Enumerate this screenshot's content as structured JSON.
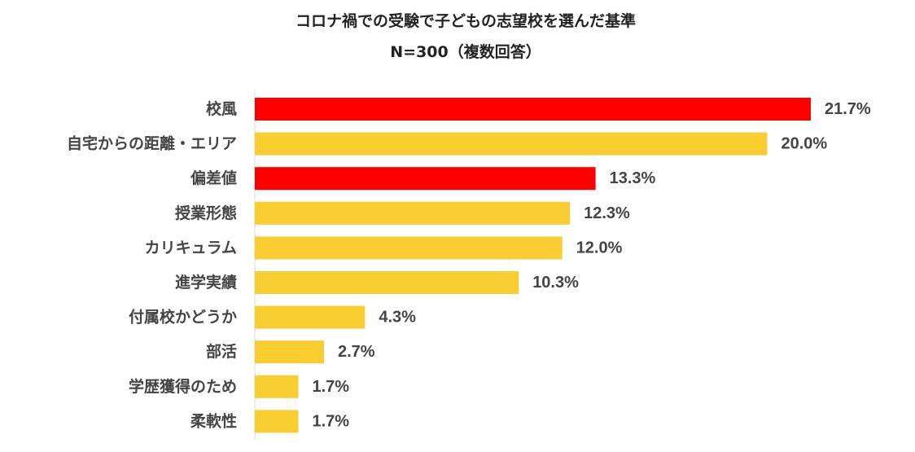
{
  "chart_data": {
    "type": "bar",
    "orientation": "horizontal",
    "title": "コロナ禍での受験で子どもの志望校を選んだ基準",
    "subtitle": "N=300（複数回答）",
    "categories": [
      "校風",
      "自宅からの距離・エリア",
      "偏差値",
      "授業形態",
      "カリキュラム",
      "進学実績",
      "付属校かどうか",
      "部活",
      "学歴獲得のため",
      "柔軟性"
    ],
    "values": [
      21.7,
      20.0,
      13.3,
      12.3,
      12.0,
      10.3,
      4.3,
      2.7,
      1.7,
      1.7
    ],
    "value_labels": [
      "21.7%",
      "20.0%",
      "13.3%",
      "12.3%",
      "12.0%",
      "10.3%",
      "4.3%",
      "2.7%",
      "1.7%",
      "1.7%"
    ],
    "highlighted": [
      true,
      false,
      true,
      false,
      false,
      false,
      false,
      false,
      false,
      false
    ],
    "xlim": [
      0,
      21.7
    ],
    "grid": false,
    "legend": "none"
  },
  "colors": {
    "highlight": "#ff0000",
    "default": "#f9cd2f",
    "text": "#444444",
    "title": "#222222",
    "axis": "#d9d9d9"
  }
}
